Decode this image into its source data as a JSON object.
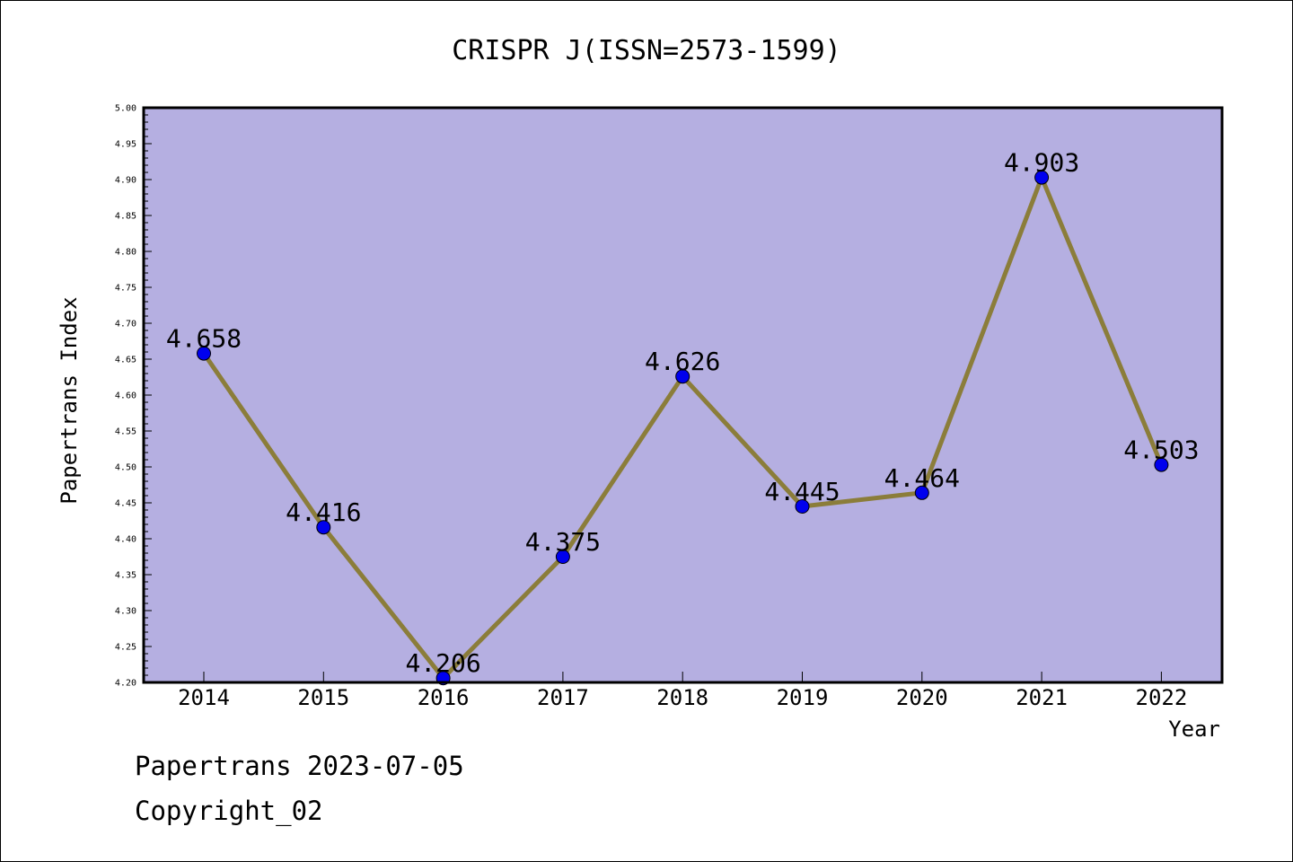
{
  "chart_data": {
    "type": "line",
    "title": "CRISPR J(ISSN=2573-1599)",
    "xlabel": "Year",
    "ylabel": "Papertrans Index",
    "categories": [
      "2014",
      "2015",
      "2016",
      "2017",
      "2018",
      "2019",
      "2020",
      "2021",
      "2022"
    ],
    "series": [
      {
        "values": [
          4.658,
          4.416,
          4.206,
          4.375,
          4.626,
          4.445,
          4.464,
          4.903,
          4.503
        ],
        "labels": [
          "4.658",
          "4.416",
          "4.206",
          "4.375",
          "4.626",
          "4.445",
          "4.464",
          "4.903",
          "4.503"
        ]
      }
    ],
    "ylim": [
      4.2,
      5.0
    ],
    "yticks": [
      "4.20",
      "4.25",
      "4.30",
      "4.35",
      "4.40",
      "4.45",
      "4.50",
      "4.55",
      "4.60",
      "4.65",
      "4.70",
      "4.75",
      "4.80",
      "4.85",
      "4.90",
      "4.95",
      "5.00"
    ],
    "grid": false,
    "colors": {
      "plot_background": "#b5afe1",
      "line": "#8b7d3a",
      "marker": "#0000ee"
    }
  },
  "footer": {
    "line1": "Papertrans 2023-07-05",
    "line2": "Copyright_02"
  }
}
